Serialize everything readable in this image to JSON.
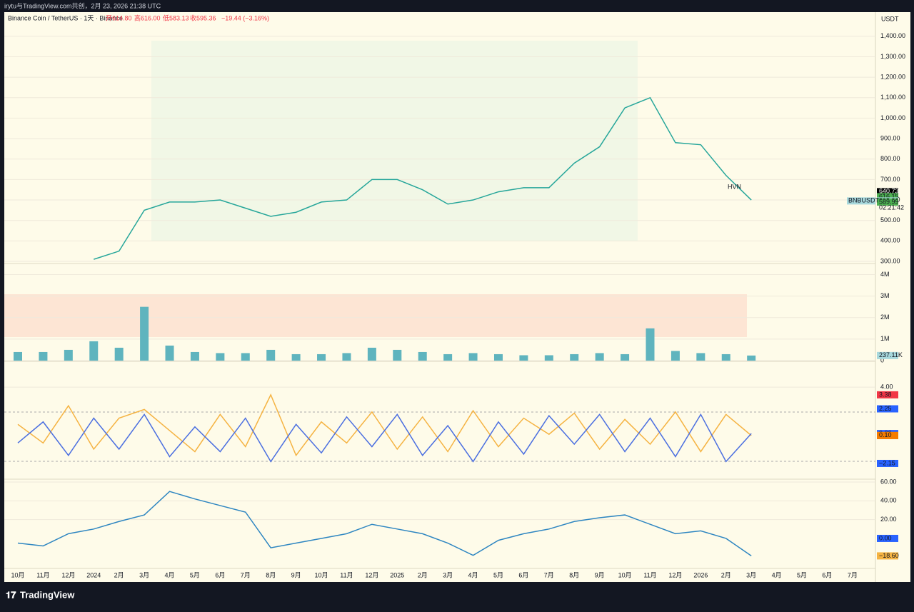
{
  "header": {
    "share_line": "irytu与TradingView.com共创，2月 23, 2026 21:38 UTC",
    "symbol": "Binance Coin / TetherUS · 1天 · Binance",
    "open": "开614.80",
    "high": "高616.00",
    "low": "低583.13",
    "close": "收595.36",
    "change": "−19.44 (−3.16%)",
    "currency": "USDT"
  },
  "footer": {
    "brand": "TradingView"
  },
  "chart_data": [
    {
      "type": "line",
      "categories": [
        "10月",
        "11月",
        "12月",
        "2024",
        "2月",
        "3月",
        "4月",
        "5月",
        "6月",
        "7月",
        "8月",
        "9月",
        "10月",
        "11月",
        "12月",
        "2025",
        "2月",
        "3月",
        "4月",
        "5月",
        "6月",
        "7月",
        "8月",
        "9月",
        "10月",
        "11月",
        "12月",
        "2026",
        "2月",
        "3月",
        "4月",
        "5月",
        "6月",
        "7月"
      ],
      "series": [
        {
          "color": "#26a69a",
          "values": [
            null,
            null,
            null,
            310,
            350,
            550,
            590,
            590,
            600,
            560,
            520,
            540,
            590,
            600,
            700,
            700,
            650,
            580,
            600,
            640,
            660,
            660,
            780,
            860,
            1050,
            1100,
            880,
            870,
            720,
            600,
            null,
            null,
            null,
            null
          ]
        }
      ],
      "ylim": [
        293,
        1518
      ],
      "yticks": [
        {
          "value": 1400,
          "label": "1,400.00"
        },
        {
          "value": 1300,
          "label": "1,300.00"
        },
        {
          "value": 1200,
          "label": "1,200.00"
        },
        {
          "value": 1100,
          "label": "1,100.00"
        },
        {
          "value": 1000,
          "label": "1,000.00"
        },
        {
          "value": 900,
          "label": "900.00"
        },
        {
          "value": 800,
          "label": "800.00"
        },
        {
          "value": 700,
          "label": "700.00"
        },
        {
          "value": 600,
          "label": "600.00"
        },
        {
          "value": 500,
          "label": "500.00"
        },
        {
          "value": 400,
          "label": "400.00"
        },
        {
          "value": 300,
          "label": "300.00"
        }
      ],
      "axis_labels": [
        {
          "value": 640.73,
          "color": "#000000"
        },
        {
          "value": 616.15,
          "color": "#4caf50"
        },
        {
          "value": 595.36,
          "color": "#a7d8dc"
        },
        {
          "value": 589.99,
          "color": "#4caf50"
        }
      ],
      "symbol_tag": "BNBUSDT",
      "countdown": "02:21:42",
      "annotation": "HVN"
    },
    {
      "type": "bar",
      "series": [
        {
          "color": "#5fb4be",
          "values": [
            400000,
            400000,
            500000,
            900000,
            600000,
            2500000,
            700000,
            400000,
            350000,
            350000,
            500000,
            300000,
            300000,
            350000,
            600000,
            500000,
            400000,
            300000,
            350000,
            300000,
            250000,
            250000,
            300000,
            350000,
            300000,
            1500000,
            450000,
            350000,
            300000,
            237110,
            null,
            null,
            null,
            null
          ]
        }
      ],
      "ylim": [
        0,
        4480000
      ],
      "yticks": [
        {
          "value": 4000000,
          "label": "4M"
        },
        {
          "value": 3000000,
          "label": "3M"
        },
        {
          "value": 2000000,
          "label": "2M"
        },
        {
          "value": 1000000,
          "label": "1M"
        },
        0
      ],
      "axis_labels": [
        {
          "value": 237110,
          "label": "237.11K",
          "color": "#a7d8dc"
        }
      ]
    },
    {
      "type": "line",
      "series": [
        {
          "color": "#f5b342",
          "values": [
            1.0,
            -0.5,
            2.5,
            -1.0,
            1.5,
            2.2,
            0.5,
            -1.2,
            1.8,
            -0.8,
            3.38,
            -1.5,
            1.2,
            -0.5,
            2.0,
            -1.0,
            1.6,
            -1.2,
            2.1,
            -0.8,
            1.5,
            0.2,
            1.9,
            -1.0,
            1.4,
            -0.6,
            2.0,
            -1.2,
            1.8,
            0.1,
            null,
            null,
            null,
            null
          ]
        },
        {
          "color": "#4a6ee0",
          "values": [
            -0.5,
            1.2,
            -1.5,
            1.5,
            -1.0,
            1.8,
            -1.6,
            0.8,
            -1.2,
            1.5,
            -2.0,
            1.0,
            -1.3,
            1.6,
            -0.8,
            1.8,
            -1.5,
            0.9,
            -2.0,
            1.2,
            -1.4,
            1.7,
            -0.6,
            1.8,
            -1.2,
            1.5,
            -1.6,
            1.8,
            -2.0,
            0.26,
            null,
            null,
            null,
            null
          ]
        }
      ],
      "ylim": [
        -3.36,
        6.02
      ],
      "yticks": [
        {
          "value": 4,
          "label": "4.00"
        }
      ],
      "axis_labels": [
        {
          "value": 3.38,
          "color": "#f23645"
        },
        {
          "value": 2.25,
          "color": "#2962ff"
        },
        {
          "value": 0.26,
          "color": "#2962ff"
        },
        {
          "value": 0.1,
          "label": "0.10",
          "color": "#f57c00"
        },
        {
          "value": 0.1,
          "label": "0.10",
          "color": "#f57c00"
        },
        {
          "value": -2.15,
          "label": "−2.15",
          "color": "#2962ff"
        }
      ]
    },
    {
      "type": "line",
      "series": [
        {
          "color": "#2e86c1",
          "values": [
            -5,
            -8,
            5,
            10,
            18,
            25,
            50,
            42,
            35,
            28,
            -10,
            -5,
            0,
            5,
            15,
            10,
            5,
            -5,
            -18,
            -2,
            5,
            10,
            18,
            22,
            25,
            15,
            5,
            8,
            0,
            -18.6,
            null,
            null,
            null,
            null
          ]
        }
      ],
      "ylim": [
        -31.2,
        62.3
      ],
      "yticks": [
        {
          "value": 60,
          "label": "60.00"
        },
        {
          "value": 40,
          "label": "40.00"
        },
        {
          "value": 20,
          "label": "20.00"
        }
      ],
      "axis_labels": [
        {
          "value": 0,
          "label": "0.00",
          "color": "#2962ff"
        },
        {
          "value": -18.6,
          "label": "−18.60",
          "color": "#f5b342"
        }
      ]
    }
  ]
}
